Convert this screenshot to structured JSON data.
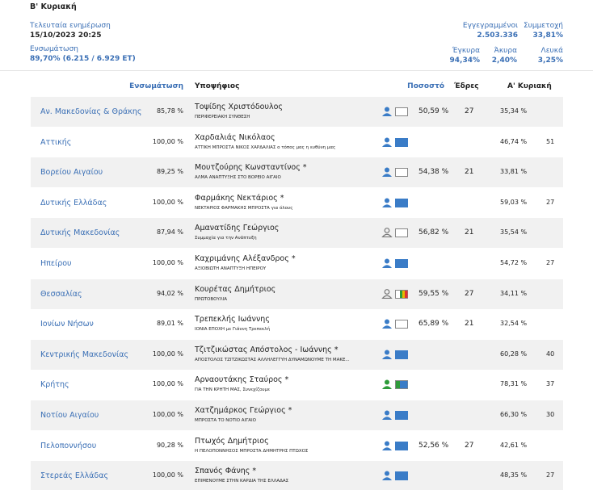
{
  "header": {
    "title": "Β' Κυριακή",
    "last_update_label": "Τελευταία ενημέρωση",
    "last_update": "15/10/2023 20:25",
    "integration_label": "Ενσωμάτωση",
    "integration": "89,70% (6.215 / 6.929 ΕΤ)",
    "registered_label": "Εγγεγραμμένοι",
    "registered": "2.503.336",
    "turnout_label": "Συμμετοχή",
    "turnout": "33,81%",
    "valid_label": "Έγκυρα",
    "valid": "94,34%",
    "invalid_label": "Άκυρα",
    "invalid": "2,40%",
    "blank_label": "Λευκά",
    "blank": "3,25%"
  },
  "table": {
    "columns": [
      "Ενσωμάτωση",
      "Υποψήφιος",
      "Ποσοστό",
      "Έδρες",
      "Α' Κυριακή"
    ],
    "rows": [
      {
        "region": "Αν. Μακεδονίας & Θράκης",
        "integration": "85,78 %",
        "candidate": "Τοψίδης Χριστόδουλος",
        "party": "ΠΕΡΙΦΕΡΕΙΑΚΗ ΣΥΝΘΕΣΗ",
        "percent": "50,59 %",
        "seats": "27",
        "first_percent": "35,34 %",
        "first_seats": null
      },
      {
        "region": "Αττικής",
        "integration": "100,00 %",
        "candidate": "Χαρδαλιάς Νικόλαος",
        "party": "ΑΤΤΙΚΗ ΜΠΡΟΣΤΑ ΝΙΚΟΣ ΧΑΡΔΑΛΙΑΣ ο τόπος μας η ευθύνη μας",
        "percent": null,
        "seats": null,
        "first_percent": "46,74 %",
        "first_seats": "51"
      },
      {
        "region": "Βορείου Αιγαίου",
        "integration": "89,25 %",
        "candidate": "Μουτζούρης Κωνσταντίνος *",
        "party": "ΑΛΜΑ ΑΝΑΠΤΥΞΗΣ ΣΤΟ ΒΟΡΕΙΟ ΑΙΓΑΙΟ",
        "percent": "54,38 %",
        "seats": "21",
        "first_percent": "33,81 %",
        "first_seats": null
      },
      {
        "region": "Δυτικής Ελλάδας",
        "integration": "100,00 %",
        "candidate": "Φαρμάκης Νεκτάριος *",
        "party": "ΝΕΚΤΑΡΙΟΣ ΦΑΡΜΑΚΗΣ ΜΠΡΟΣΤΑ για όλους",
        "percent": null,
        "seats": null,
        "first_percent": "59,03 %",
        "first_seats": "27"
      },
      {
        "region": "Δυτικής Μακεδονίας",
        "integration": "87,94 %",
        "candidate": "Αμανατίδης Γεώργιος",
        "party": "Συμμαχία για την Ανάπτυξη",
        "percent": "56,82 %",
        "seats": "21",
        "first_percent": "35,54 %",
        "first_seats": null
      },
      {
        "region": "Ηπείρου",
        "integration": "100,00 %",
        "candidate": "Καχριμάνης Αλέξανδρος *",
        "party": "ΑΞΙΟΒΙΩΤΗ ΑΝΑΠΤΥΞΗ ΗΠΕΙΡΟΥ",
        "percent": null,
        "seats": null,
        "first_percent": "54,72 %",
        "first_seats": "27"
      },
      {
        "region": "Θεσσαλίας",
        "integration": "94,02 %",
        "candidate": "Κουρέτας Δημήτριος",
        "party": "ΠΡΩΤΟΒΟΥΛΙΑ",
        "percent": "59,55 %",
        "seats": "27",
        "first_percent": "34,11 %",
        "first_seats": null
      },
      {
        "region": "Ιονίων Νήσων",
        "integration": "89,01 %",
        "candidate": "Τρεπεκλής Ιωάννης",
        "party": "ΙΟΝΙΑ ΕΠΟΧΗ με Γιάννη Τρεπεκλή",
        "percent": "65,89 %",
        "seats": "21",
        "first_percent": "32,54 %",
        "first_seats": null
      },
      {
        "region": "Κεντρικής Μακεδονίας",
        "integration": "100,00 %",
        "candidate": "Τζιτζικώστας Απόστολος - Ιωάννης *",
        "party": "ΑΠΟΣΤΟΛΟΣ ΤΖΙΤΖΙΚΩΣΤΑΣ ΑΛΛΗΛΕΓΓΥΗ ΔΥΝΑΜΩΝΟΥΜΕ ΤΗ ΜΑΚΕ...",
        "percent": null,
        "seats": null,
        "first_percent": "60,28 %",
        "first_seats": "40"
      },
      {
        "region": "Κρήτης",
        "integration": "100,00 %",
        "candidate": "Αρναουτάκης Σταύρος *",
        "party": "ΓΙΑ ΤΗΝ ΚΡΗΤΗ ΜΑΣ, Συνεχίζουμε",
        "percent": null,
        "seats": null,
        "first_percent": "78,31 %",
        "first_seats": "37"
      },
      {
        "region": "Νοτίου Αιγαίου",
        "integration": "100,00 %",
        "candidate": "Χατζημάρκος Γεώργιος *",
        "party": "ΜΠΡΟΣΤΑ ΤΟ ΝΟΤΙΟ ΑΙΓΑΙΟ",
        "percent": null,
        "seats": null,
        "first_percent": "66,30 %",
        "first_seats": "30"
      },
      {
        "region": "Πελοποννήσου",
        "integration": "90,28 %",
        "candidate": "Πτωχός Δημήτριος",
        "party": "Η ΠΕΛΟΠΟΝΝΗΣΟΣ ΜΠΡΟΣΤΑ ΔΗΜΗΤΡΗΣ ΠΤΩΧΟΣ",
        "percent": "52,56 %",
        "seats": "27",
        "first_percent": "42,61 %",
        "first_seats": null
      },
      {
        "region": "Στερεάς Ελλάδας",
        "integration": "100,00 %",
        "candidate": "Σπανός Φάνης *",
        "party": "ΕΠΙΜΕΝΟΥΜΕ ΣΤΗΝ ΚΑΡΔΙΑ ΤΗΣ ΕΛΛΑΔΑΣ",
        "percent": null,
        "seats": null,
        "first_percent": "48,35 %",
        "first_seats": "27"
      }
    ]
  }
}
